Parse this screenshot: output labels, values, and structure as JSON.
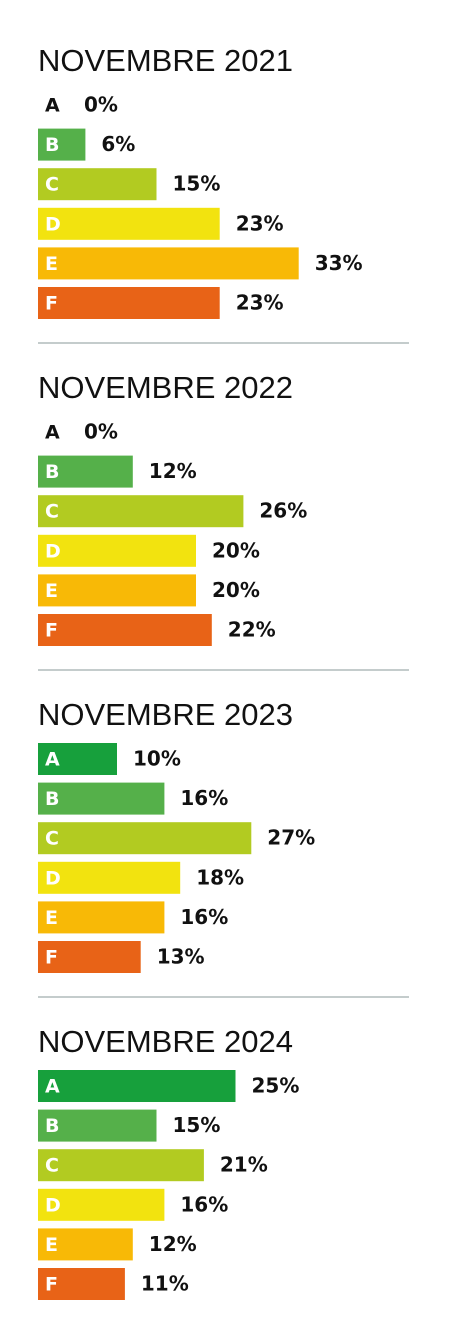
{
  "chart_data": [
    {
      "type": "bar",
      "title": "NOVEMBRE 2021",
      "categories": [
        "A",
        "B",
        "C",
        "D",
        "E",
        "F"
      ],
      "values": [
        0,
        6,
        15,
        23,
        33,
        23
      ],
      "value_labels": [
        "0%",
        "6%",
        "15%",
        "23%",
        "33%",
        "23%"
      ],
      "colors": [
        "#17a03c",
        "#55b04a",
        "#b2cb21",
        "#f2e30f",
        "#f8b906",
        "#e86317"
      ]
    },
    {
      "type": "bar",
      "title": "NOVEMBRE 2022",
      "categories": [
        "A",
        "B",
        "C",
        "D",
        "E",
        "F"
      ],
      "values": [
        0,
        12,
        26,
        20,
        20,
        22
      ],
      "value_labels": [
        "0%",
        "12%",
        "26%",
        "20%",
        "20%",
        "22%"
      ],
      "colors": [
        "#17a03c",
        "#55b04a",
        "#b2cb21",
        "#f2e30f",
        "#f8b906",
        "#e86317"
      ]
    },
    {
      "type": "bar",
      "title": "NOVEMBRE 2023",
      "categories": [
        "A",
        "B",
        "C",
        "D",
        "E",
        "F"
      ],
      "values": [
        10,
        16,
        27,
        18,
        16,
        13
      ],
      "value_labels": [
        "10%",
        "16%",
        "27%",
        "18%",
        "16%",
        "13%"
      ],
      "colors": [
        "#17a03c",
        "#55b04a",
        "#b2cb21",
        "#f2e30f",
        "#f8b906",
        "#e86317"
      ]
    },
    {
      "type": "bar",
      "title": "NOVEMBRE 2024",
      "categories": [
        "A",
        "B",
        "C",
        "D",
        "E",
        "F"
      ],
      "values": [
        25,
        15,
        21,
        16,
        12,
        11
      ],
      "value_labels": [
        "25%",
        "15%",
        "21%",
        "16%",
        "12%",
        "11%"
      ],
      "colors": [
        "#17a03c",
        "#55b04a",
        "#b2cb21",
        "#f2e30f",
        "#f8b906",
        "#e86317"
      ]
    }
  ]
}
